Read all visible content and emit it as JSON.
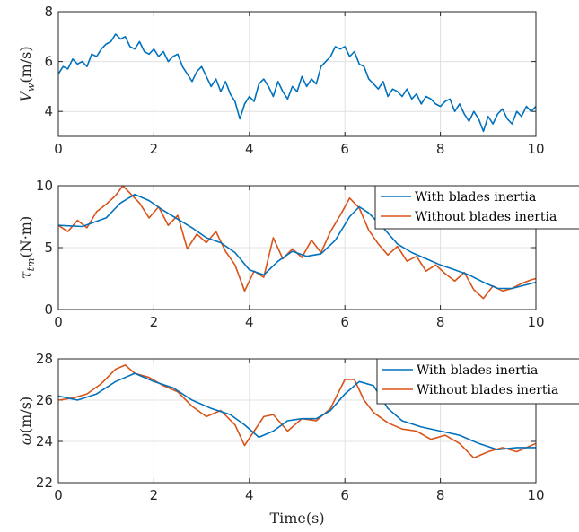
{
  "chart_data": [
    {
      "type": "line",
      "ylabel": "V_w(m/s)",
      "xlim": [
        0,
        10
      ],
      "ylim": [
        3,
        8
      ],
      "xticks": [
        "0",
        "2",
        "4",
        "6",
        "8",
        "10"
      ],
      "yticks": [
        "4",
        "6",
        "8"
      ],
      "grid": true,
      "series": [
        {
          "color": "#0072BD",
          "x": [
            0,
            0.1,
            0.2,
            0.3,
            0.4,
            0.5,
            0.6,
            0.7,
            0.8,
            0.9,
            1.0,
            1.1,
            1.2,
            1.3,
            1.4,
            1.5,
            1.6,
            1.7,
            1.8,
            1.9,
            2.0,
            2.1,
            2.2,
            2.3,
            2.4,
            2.5,
            2.6,
            2.7,
            2.8,
            2.9,
            3.0,
            3.1,
            3.2,
            3.3,
            3.4,
            3.5,
            3.6,
            3.7,
            3.8,
            3.9,
            4.0,
            4.1,
            4.2,
            4.3,
            4.4,
            4.5,
            4.6,
            4.7,
            4.8,
            4.9,
            5.0,
            5.1,
            5.2,
            5.3,
            5.4,
            5.5,
            5.6,
            5.7,
            5.8,
            5.9,
            6.0,
            6.1,
            6.2,
            6.3,
            6.4,
            6.5,
            6.6,
            6.7,
            6.8,
            6.9,
            7.0,
            7.1,
            7.2,
            7.3,
            7.4,
            7.5,
            7.6,
            7.7,
            7.8,
            7.9,
            8.0,
            8.1,
            8.2,
            8.3,
            8.4,
            8.5,
            8.6,
            8.7,
            8.8,
            8.9,
            9.0,
            9.1,
            9.2,
            9.3,
            9.4,
            9.5,
            9.6,
            9.7,
            9.8,
            9.9,
            10.0
          ],
          "y": [
            5.5,
            5.8,
            5.7,
            6.1,
            5.9,
            6.0,
            5.8,
            6.3,
            6.2,
            6.5,
            6.7,
            6.8,
            7.1,
            6.9,
            7.0,
            6.6,
            6.5,
            6.8,
            6.4,
            6.3,
            6.5,
            6.2,
            6.4,
            6.0,
            6.2,
            6.3,
            5.8,
            5.5,
            5.2,
            5.6,
            5.8,
            5.4,
            5.0,
            5.3,
            4.8,
            5.2,
            4.7,
            4.4,
            3.7,
            4.3,
            4.6,
            4.4,
            5.1,
            5.3,
            5.0,
            4.6,
            5.2,
            4.8,
            4.5,
            5.0,
            4.8,
            5.4,
            5.0,
            5.3,
            5.1,
            5.8,
            6.0,
            6.2,
            6.6,
            6.5,
            6.6,
            6.2,
            6.4,
            5.9,
            5.8,
            5.3,
            5.1,
            4.9,
            5.2,
            4.6,
            4.9,
            4.8,
            4.6,
            4.9,
            4.5,
            4.7,
            4.3,
            4.6,
            4.5,
            4.3,
            4.2,
            4.4,
            4.5,
            4.0,
            4.3,
            3.9,
            3.6,
            4.0,
            3.7,
            3.2,
            3.8,
            3.5,
            3.9,
            4.1,
            3.7,
            3.5,
            4.0,
            3.8,
            4.2,
            4.0,
            4.2
          ]
        }
      ]
    },
    {
      "type": "line",
      "ylabel": "τ_tm(N·m)",
      "xlim": [
        0,
        10
      ],
      "ylim": [
        0,
        10
      ],
      "xticks": [
        "0",
        "2",
        "4",
        "6",
        "8",
        "10"
      ],
      "yticks": [
        "0",
        "5",
        "10"
      ],
      "grid": true,
      "legend": "top-right",
      "series": [
        {
          "name": "With blades inertia",
          "color": "#0072BD",
          "x": [
            0,
            0.5,
            1.0,
            1.3,
            1.6,
            1.9,
            2.2,
            2.5,
            2.8,
            3.1,
            3.4,
            3.7,
            4.0,
            4.3,
            4.6,
            4.9,
            5.2,
            5.5,
            5.8,
            6.1,
            6.3,
            6.5,
            6.8,
            7.1,
            7.4,
            7.7,
            8.0,
            8.3,
            8.6,
            8.9,
            9.2,
            9.5,
            9.8,
            10.0
          ],
          "y": [
            6.8,
            6.7,
            7.4,
            8.6,
            9.3,
            8.8,
            8.0,
            7.3,
            6.6,
            5.8,
            5.4,
            4.6,
            3.2,
            2.8,
            3.9,
            4.7,
            4.3,
            4.5,
            5.6,
            7.5,
            8.3,
            7.8,
            6.6,
            5.3,
            4.6,
            4.1,
            3.6,
            3.2,
            2.8,
            2.2,
            1.7,
            1.7,
            2.0,
            2.2
          ]
        },
        {
          "name": "Without blades inertia",
          "color": "#D95319",
          "x": [
            0,
            0.2,
            0.4,
            0.6,
            0.8,
            1.0,
            1.2,
            1.35,
            1.5,
            1.7,
            1.9,
            2.1,
            2.3,
            2.5,
            2.7,
            2.9,
            3.1,
            3.3,
            3.5,
            3.7,
            3.9,
            4.1,
            4.3,
            4.5,
            4.7,
            4.9,
            5.1,
            5.3,
            5.5,
            5.7,
            5.9,
            6.1,
            6.3,
            6.5,
            6.7,
            6.9,
            7.1,
            7.3,
            7.5,
            7.7,
            7.9,
            8.1,
            8.3,
            8.5,
            8.7,
            8.9,
            9.1,
            9.3,
            9.5,
            9.7,
            9.9,
            10.0
          ],
          "y": [
            6.8,
            6.3,
            7.2,
            6.6,
            7.9,
            8.5,
            9.2,
            10.0,
            9.4,
            8.6,
            7.4,
            8.3,
            6.8,
            7.6,
            4.9,
            6.1,
            5.4,
            6.3,
            4.7,
            3.6,
            1.5,
            3.1,
            2.6,
            5.8,
            4.1,
            4.9,
            4.2,
            5.6,
            4.6,
            6.3,
            7.6,
            9.0,
            8.2,
            6.4,
            5.3,
            4.4,
            5.1,
            3.9,
            4.3,
            3.1,
            3.6,
            2.9,
            2.3,
            3.0,
            1.6,
            0.9,
            1.9,
            1.5,
            1.7,
            2.1,
            2.4,
            2.5
          ]
        }
      ]
    },
    {
      "type": "line",
      "ylabel": "ω(m/s)",
      "xlabel": "Time(s)",
      "xlim": [
        0,
        10
      ],
      "ylim": [
        22,
        28
      ],
      "xticks": [
        "0",
        "2",
        "4",
        "6",
        "8",
        "10"
      ],
      "yticks": [
        "22",
        "24",
        "26",
        "28"
      ],
      "grid": true,
      "legend": "top-right",
      "series": [
        {
          "name": "With blades inertia",
          "color": "#0072BD",
          "x": [
            0,
            0.4,
            0.8,
            1.2,
            1.6,
            2.0,
            2.4,
            2.8,
            3.2,
            3.6,
            3.9,
            4.2,
            4.5,
            4.8,
            5.1,
            5.4,
            5.7,
            6.0,
            6.3,
            6.6,
            6.9,
            7.2,
            7.6,
            8.0,
            8.4,
            8.8,
            9.2,
            9.6,
            10.0
          ],
          "y": [
            26.2,
            26.0,
            26.3,
            26.9,
            27.3,
            26.9,
            26.6,
            26.0,
            25.6,
            25.3,
            24.8,
            24.2,
            24.5,
            25.0,
            25.1,
            25.1,
            25.5,
            26.3,
            26.9,
            26.7,
            25.6,
            25.0,
            24.7,
            24.5,
            24.3,
            23.9,
            23.6,
            23.7,
            23.7
          ]
        },
        {
          "name": "Without blades inertia",
          "color": "#D95319",
          "x": [
            0,
            0.3,
            0.6,
            0.9,
            1.2,
            1.4,
            1.6,
            1.9,
            2.2,
            2.5,
            2.8,
            3.1,
            3.4,
            3.7,
            3.9,
            4.1,
            4.3,
            4.5,
            4.8,
            5.1,
            5.4,
            5.7,
            6.0,
            6.2,
            6.4,
            6.6,
            6.9,
            7.2,
            7.5,
            7.8,
            8.1,
            8.4,
            8.7,
            9.0,
            9.3,
            9.6,
            10.0
          ],
          "y": [
            26.0,
            26.1,
            26.3,
            26.8,
            27.5,
            27.7,
            27.3,
            27.1,
            26.7,
            26.4,
            25.7,
            25.2,
            25.5,
            24.8,
            23.8,
            24.5,
            25.2,
            25.3,
            24.5,
            25.1,
            25.0,
            25.6,
            27.0,
            27.0,
            26.0,
            25.4,
            24.9,
            24.6,
            24.5,
            24.1,
            24.3,
            23.9,
            23.2,
            23.5,
            23.7,
            23.5,
            23.9
          ]
        }
      ]
    }
  ]
}
